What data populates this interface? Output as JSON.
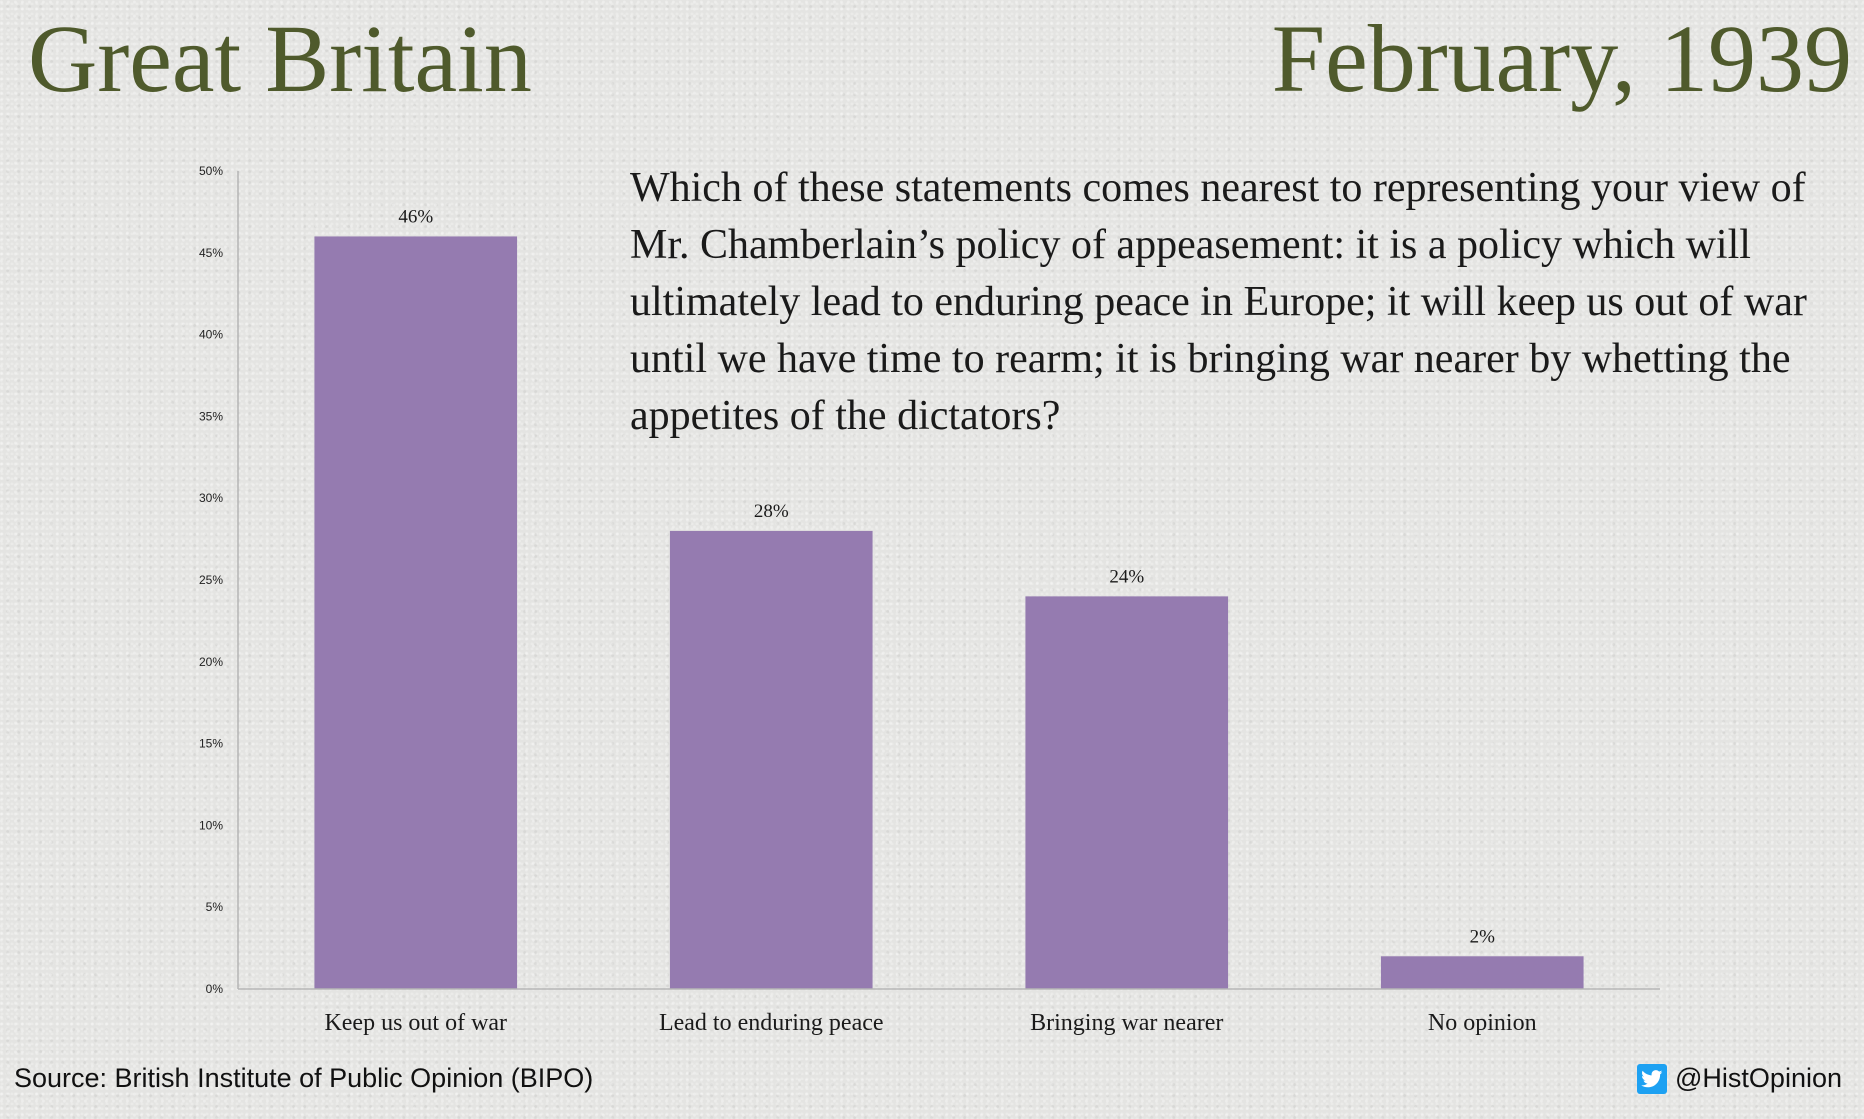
{
  "header": {
    "title_left": "Great Britain",
    "title_right": "February, 1939"
  },
  "question": "Which of these statements comes nearest to representing your view of Mr. Chamberlain’s policy of appeasement: it is a policy which will ultimately lead to enduring peace in Europe; it will keep us out of war until we have time to rearm; it is bringing war nearer by whetting the appetites of the dictators?",
  "footer": {
    "source": "Source: British Institute of Public Opinion (BIPO)",
    "handle": "@HistOpinion",
    "icon": "twitter-bird-icon"
  },
  "colors": {
    "bar": "#957bb0",
    "title": "#4f5a2c",
    "twitter": "#1da1f2"
  },
  "chart_data": {
    "type": "bar",
    "title": "",
    "xlabel": "",
    "ylabel": "",
    "categories": [
      "Keep us out of war",
      "Lead to enduring peace",
      "Bringing war nearer",
      "No opinion"
    ],
    "values": [
      46,
      28,
      24,
      2
    ],
    "data_labels": [
      "46%",
      "28%",
      "24%",
      "2%"
    ],
    "ylim": [
      0,
      50
    ],
    "yticks": [
      "0%",
      "5%",
      "10%",
      "15%",
      "20%",
      "25%",
      "30%",
      "35%",
      "40%",
      "45%",
      "50%"
    ],
    "grid": false,
    "legend": "none"
  }
}
